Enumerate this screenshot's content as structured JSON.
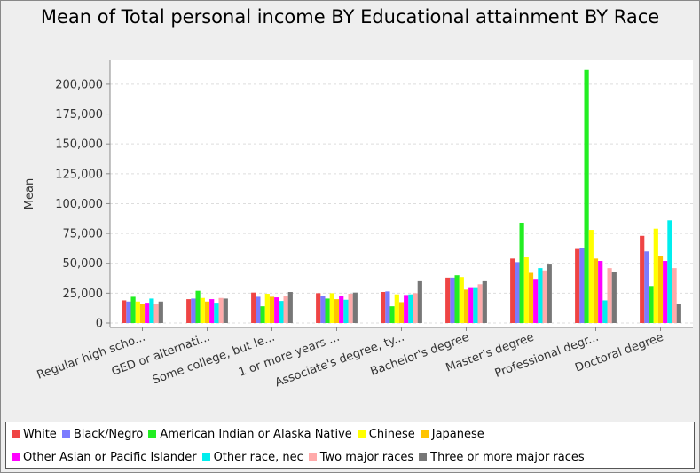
{
  "chart_data": {
    "type": "bar",
    "title": "Mean of Total personal income BY Educational attainment BY Race",
    "ylabel": "Mean",
    "xlabel": "",
    "ylim": [
      0,
      220000
    ],
    "yticks": [
      0,
      25000,
      50000,
      75000,
      100000,
      125000,
      150000,
      175000,
      200000
    ],
    "ytick_labels": [
      "0",
      "25,000",
      "50,000",
      "75,000",
      "100,000",
      "125,000",
      "150,000",
      "175,000",
      "200,000"
    ],
    "grid": true,
    "legend_position": "bottom",
    "categories": [
      "Regular high scho...",
      "GED or alternati...",
      "Some college, but le...",
      "1 or more years ...",
      "Associate's degree, ty...",
      "Bachelor's degree",
      "Master's degree",
      "Professional degr...",
      "Doctoral degree"
    ],
    "series": [
      {
        "name": "White",
        "color": "#ef4444",
        "values": [
          19000,
          20000,
          25500,
          25000,
          26000,
          38000,
          54000,
          62000,
          73000
        ]
      },
      {
        "name": "Black/Negro",
        "color": "#7b7bff",
        "values": [
          18000,
          20500,
          22000,
          23000,
          26500,
          38000,
          51000,
          63000,
          60000
        ]
      },
      {
        "name": "American Indian or Alaska Native",
        "color": "#22ee22",
        "values": [
          22000,
          27000,
          14000,
          20500,
          14000,
          40000,
          84000,
          212000,
          31000
        ]
      },
      {
        "name": "Chinese",
        "color": "#ffff00",
        "values": [
          18000,
          21000,
          24500,
          25000,
          24000,
          38500,
          55000,
          78000,
          79000
        ]
      },
      {
        "name": "Japanese",
        "color": "#ffc400",
        "values": [
          16000,
          18000,
          22000,
          20000,
          17500,
          28000,
          42000,
          54000,
          56000
        ]
      },
      {
        "name": "Other Asian or Pacific Islander",
        "color": "#ff00ff",
        "values": [
          17000,
          20000,
          21500,
          23000,
          23500,
          30000,
          37000,
          52000,
          52000
        ]
      },
      {
        "name": "Other race, nec",
        "color": "#00eeee",
        "values": [
          20500,
          17000,
          18500,
          19500,
          24000,
          30000,
          46000,
          19000,
          86000
        ]
      },
      {
        "name": "Two major races",
        "color": "#ffaaaa",
        "values": [
          16000,
          21000,
          23000,
          24500,
          25000,
          32500,
          44000,
          46000,
          46000
        ]
      },
      {
        "name": "Three or more major races",
        "color": "#777777",
        "values": [
          18000,
          20500,
          26000,
          25500,
          35000,
          35000,
          49000,
          43000,
          16000
        ]
      }
    ]
  }
}
